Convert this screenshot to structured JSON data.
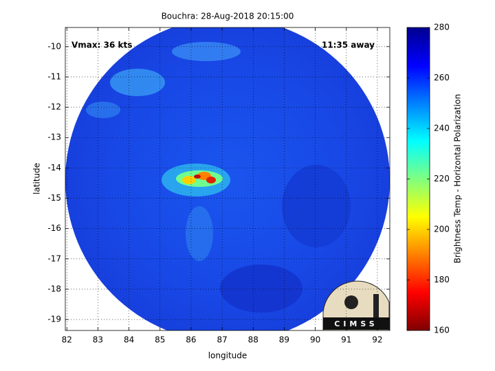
{
  "chart_data": {
    "type": "image",
    "title": "Bouchra: 28-Aug-2018 20:15:00",
    "x_label": "longitude",
    "y_label": "latitude",
    "annotations": [
      "Vmax: 36 kts",
      "11:35 away"
    ],
    "logo": "CIMSS",
    "xlim": [
      81.95,
      92.4
    ],
    "xticks": [
      82,
      83,
      84,
      85,
      86,
      87,
      88,
      89,
      90,
      91,
      92
    ],
    "ylim": [
      -19.36,
      -9.37
    ],
    "yticks": [
      -10,
      -11,
      -12,
      -13,
      -14,
      -15,
      -16,
      -17,
      -18,
      -19
    ],
    "grid": true,
    "colorbar": {
      "label": "Brightness Temp - Horizontal Polarization",
      "lim": [
        160,
        280
      ],
      "ticks": [
        160,
        180,
        200,
        220,
        240,
        260,
        280
      ],
      "colormap": [
        "#800000",
        "#ff0000",
        "#ff8000",
        "#ffff00",
        "#80ff80",
        "#00ffff",
        "#0080ff",
        "#0000ff",
        "#00008f"
      ]
    }
  }
}
